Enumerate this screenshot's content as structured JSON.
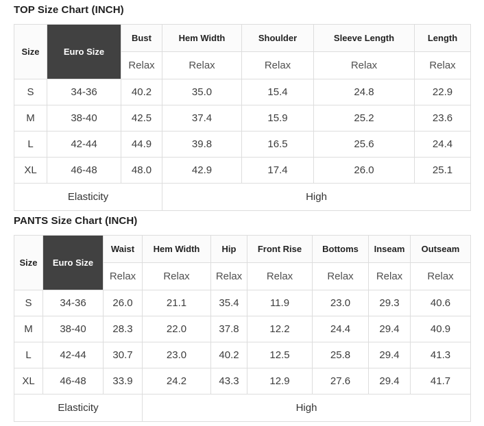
{
  "colors": {
    "euro_header_bg": "#414141",
    "euro_header_text": "#ffffff",
    "header_bg": "#fbfbfb",
    "header_text": "#222222",
    "border": "#dddddd",
    "data_text": "#3c3c3c",
    "fit_text": "#505050",
    "page_bg": "#ffffff"
  },
  "tables": [
    {
      "title": "TOP Size Chart (INCH)",
      "size_header": "Size",
      "euro_header": "Euro Size",
      "fit_label": "Relax",
      "measure_columns": [
        "Bust",
        "Hem Width",
        "Shoulder",
        "Sleeve Length",
        "Length"
      ],
      "rows": [
        {
          "size": "S",
          "euro": "34-36",
          "values": [
            "40.2",
            "35.0",
            "15.4",
            "24.8",
            "22.9"
          ]
        },
        {
          "size": "M",
          "euro": "38-40",
          "values": [
            "42.5",
            "37.4",
            "15.9",
            "25.2",
            "23.6"
          ]
        },
        {
          "size": "L",
          "euro": "42-44",
          "values": [
            "44.9",
            "39.8",
            "16.5",
            "25.6",
            "24.4"
          ]
        },
        {
          "size": "XL",
          "euro": "46-48",
          "values": [
            "48.0",
            "42.9",
            "17.4",
            "26.0",
            "25.1"
          ]
        }
      ],
      "footer": {
        "label": "Elasticity",
        "value": "High"
      }
    },
    {
      "title": "PANTS Size Chart (INCH)",
      "size_header": "Size",
      "euro_header": "Euro Size",
      "fit_label": "Relax",
      "measure_columns": [
        "Waist",
        "Hem Width",
        "Hip",
        "Front Rise",
        "Bottoms",
        "Inseam",
        "Outseam"
      ],
      "rows": [
        {
          "size": "S",
          "euro": "34-36",
          "values": [
            "26.0",
            "21.1",
            "35.4",
            "11.9",
            "23.0",
            "29.3",
            "40.6"
          ]
        },
        {
          "size": "M",
          "euro": "38-40",
          "values": [
            "28.3",
            "22.0",
            "37.8",
            "12.2",
            "24.4",
            "29.4",
            "40.9"
          ]
        },
        {
          "size": "L",
          "euro": "42-44",
          "values": [
            "30.7",
            "23.0",
            "40.2",
            "12.5",
            "25.8",
            "29.4",
            "41.3"
          ]
        },
        {
          "size": "XL",
          "euro": "46-48",
          "values": [
            "33.9",
            "24.2",
            "43.3",
            "12.9",
            "27.6",
            "29.4",
            "41.7"
          ]
        }
      ],
      "footer": {
        "label": "Elasticity",
        "value": "High"
      }
    }
  ]
}
